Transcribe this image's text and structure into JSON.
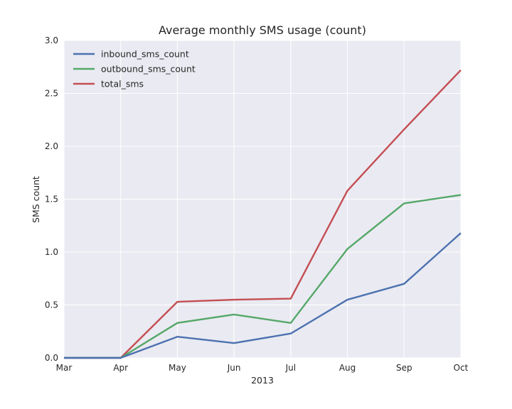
{
  "chart_data": {
    "type": "line",
    "title": "Average monthly SMS usage (count)",
    "xlabel": "2013",
    "ylabel": "SMS count",
    "categories": [
      "Mar",
      "Apr",
      "May",
      "Jun",
      "Jul",
      "Aug",
      "Sep",
      "Oct"
    ],
    "ylim": [
      0,
      3.0
    ],
    "yticks": [
      "0.0",
      "0.5",
      "1.0",
      "1.5",
      "2.0",
      "2.5",
      "3.0"
    ],
    "grid": true,
    "legend_position": "top-left",
    "series": [
      {
        "name": "inbound_sms_count",
        "color": "#4c72b0",
        "values": [
          0,
          0,
          0.2,
          0.14,
          0.23,
          0.55,
          0.7,
          1.18
        ]
      },
      {
        "name": "outbound_sms_count",
        "color": "#55a868",
        "values": [
          0,
          0,
          0.33,
          0.41,
          0.33,
          1.03,
          1.46,
          1.54
        ]
      },
      {
        "name": "total_sms",
        "color": "#c44e52",
        "values": [
          0,
          0,
          0.53,
          0.55,
          0.56,
          1.58,
          2.16,
          2.72
        ]
      }
    ]
  }
}
